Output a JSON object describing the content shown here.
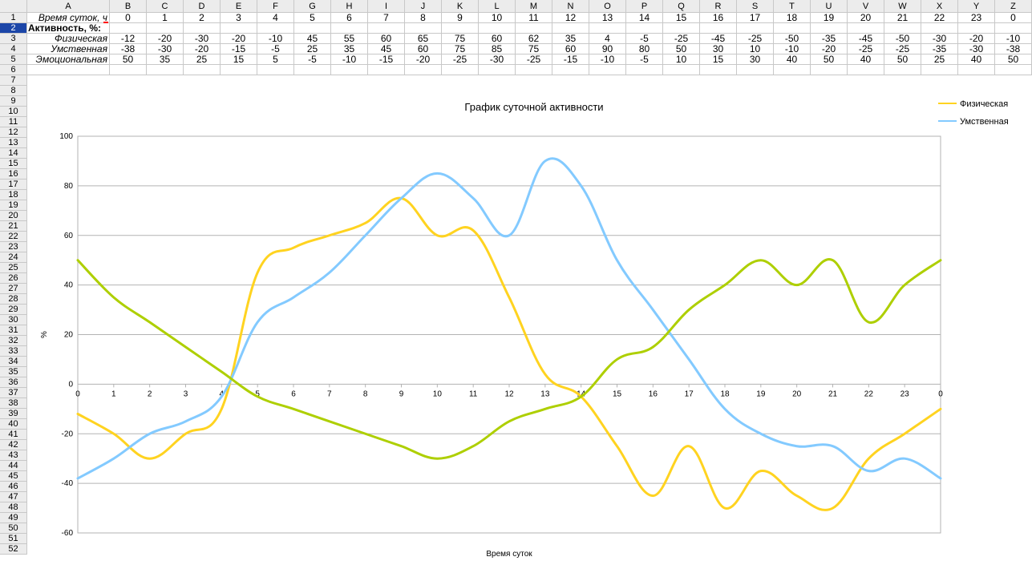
{
  "sheet": {
    "columns": [
      "A",
      "B",
      "C",
      "D",
      "E",
      "F",
      "G",
      "H",
      "I",
      "J",
      "K",
      "L",
      "M",
      "N",
      "O",
      "P",
      "Q",
      "R",
      "S",
      "T",
      "U",
      "V",
      "W",
      "X",
      "Y",
      "Z"
    ],
    "row_count": 52,
    "selected_row": "2",
    "table": {
      "row1": {
        "label": "Время суток, ч",
        "values": [
          "0",
          "1",
          "2",
          "3",
          "4",
          "5",
          "6",
          "7",
          "8",
          "9",
          "10",
          "11",
          "12",
          "13",
          "14",
          "15",
          "16",
          "17",
          "18",
          "19",
          "20",
          "21",
          "22",
          "23",
          "0"
        ]
      },
      "row2": {
        "label": "Активность, %:"
      },
      "row3": {
        "label": "Физическая",
        "values": [
          "-12",
          "-20",
          "-30",
          "-20",
          "-10",
          "45",
          "55",
          "60",
          "65",
          "75",
          "60",
          "62",
          "35",
          "4",
          "-5",
          "-25",
          "-45",
          "-25",
          "-50",
          "-35",
          "-45",
          "-50",
          "-30",
          "-20",
          "-10"
        ]
      },
      "row4": {
        "label": "Умственная",
        "values": [
          "-38",
          "-30",
          "-20",
          "-15",
          "-5",
          "25",
          "35",
          "45",
          "60",
          "75",
          "85",
          "75",
          "60",
          "90",
          "80",
          "50",
          "30",
          "10",
          "-10",
          "-20",
          "-25",
          "-25",
          "-35",
          "-30",
          "-38"
        ]
      },
      "row5": {
        "label": "Эмоциональная",
        "values": [
          "50",
          "35",
          "25",
          "15",
          "5",
          "-5",
          "-10",
          "-15",
          "-20",
          "-25",
          "-30",
          "-25",
          "-15",
          "-10",
          "-5",
          "10",
          "15",
          "30",
          "40",
          "50",
          "40",
          "50",
          "25",
          "40",
          "50"
        ]
      }
    }
  },
  "chart_data": {
    "type": "line",
    "title": "График суточной активности",
    "xlabel": "Время суток",
    "ylabel": "%",
    "categories": [
      "0",
      "1",
      "2",
      "3",
      "4",
      "5",
      "6",
      "7",
      "8",
      "9",
      "10",
      "11",
      "12",
      "13",
      "14",
      "15",
      "16",
      "17",
      "18",
      "19",
      "20",
      "21",
      "22",
      "23",
      "0"
    ],
    "ylim": [
      -60,
      100
    ],
    "yticks": [
      "-60",
      "-40",
      "-20",
      "0",
      "20",
      "40",
      "60",
      "80",
      "100"
    ],
    "grid": true,
    "legend_position": "top-right",
    "series": [
      {
        "name": "Физическая",
        "color": "#ffd320",
        "values": [
          -12,
          -20,
          -30,
          -20,
          -10,
          45,
          55,
          60,
          65,
          75,
          60,
          62,
          35,
          4,
          -5,
          -25,
          -45,
          -25,
          -50,
          -35,
          -45,
          -50,
          -30,
          -20,
          -10
        ]
      },
      {
        "name": "Умственная",
        "color": "#83caff",
        "values": [
          -38,
          -30,
          -20,
          -15,
          -5,
          25,
          35,
          45,
          60,
          75,
          85,
          75,
          60,
          90,
          80,
          50,
          30,
          10,
          -10,
          -20,
          -25,
          -25,
          -35,
          -30,
          -38
        ]
      },
      {
        "color": "#aecf00",
        "values": [
          50,
          35,
          25,
          15,
          5,
          -5,
          -10,
          -15,
          -20,
          -25,
          -30,
          -25,
          -15,
          -10,
          -5,
          10,
          15,
          30,
          40,
          50,
          40,
          50,
          25,
          40,
          50
        ]
      }
    ]
  }
}
